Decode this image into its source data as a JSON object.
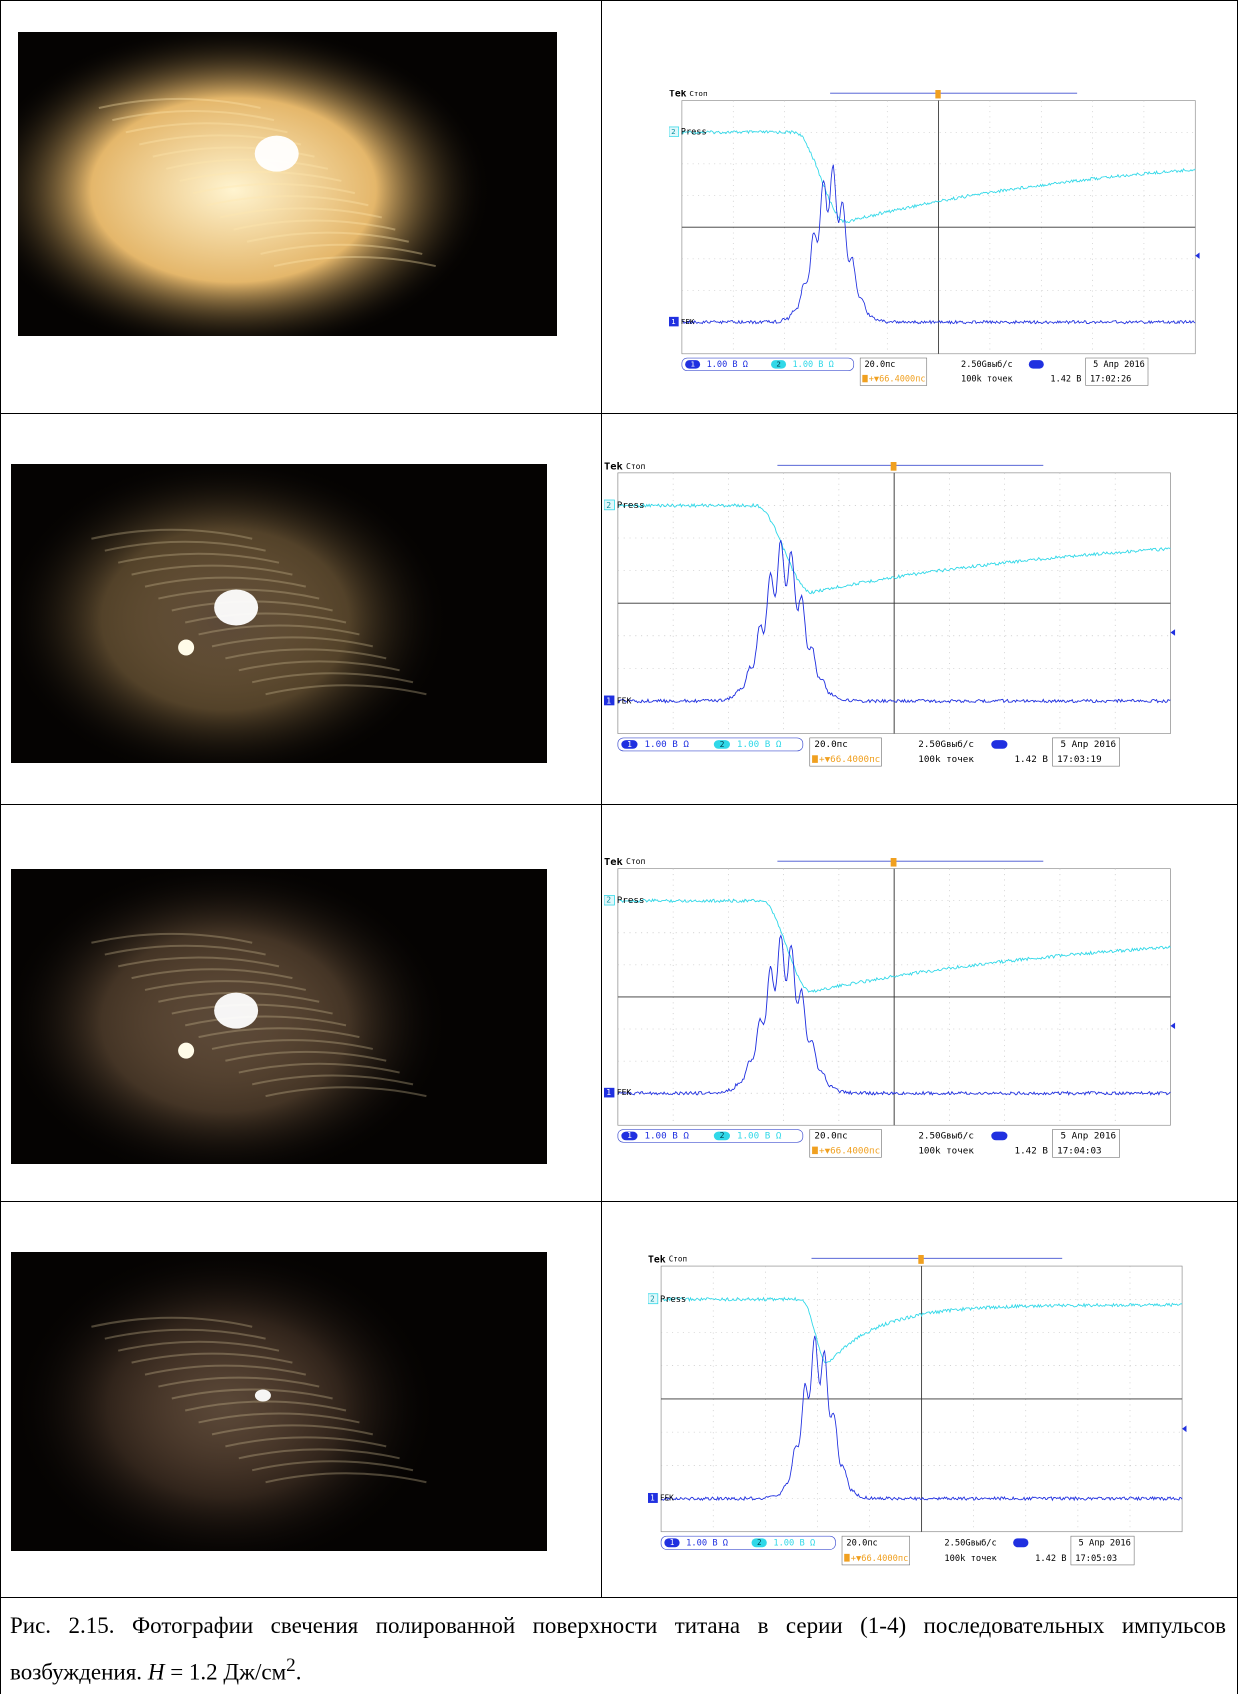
{
  "table": {
    "rows": [
      {
        "scope": {
          "brand": "Tek",
          "state": "Стоп",
          "ch2_label": "Press",
          "ch1_label": "FEK",
          "ch1_num": "1",
          "ch2_num": "2",
          "ch1_scale": "1.00 В Ω",
          "ch2_scale": "1.00 В Ω",
          "timebase": "20.0пс",
          "delay": "+▼66.4000пс",
          "sample_rate": "2.50Gвыб/с",
          "record": "100k точек",
          "trigger_level": "1.42 В",
          "date": "5 Апр 2016",
          "time": "17:02:26"
        }
      },
      {
        "scope": {
          "brand": "Tek",
          "state": "Стоп",
          "ch2_label": "Press",
          "ch1_label": "FEK",
          "ch1_num": "1",
          "ch2_num": "2",
          "ch1_scale": "1.00 В Ω",
          "ch2_scale": "1.00 В Ω",
          "timebase": "20.0пс",
          "delay": "+▼66.4000пс",
          "sample_rate": "2.50Gвыб/с",
          "record": "100k точек",
          "trigger_level": "1.42 В",
          "date": "5 Апр 2016",
          "time": "17:03:19"
        }
      },
      {
        "scope": {
          "brand": "Tek",
          "state": "Стоп",
          "ch2_label": "Press",
          "ch1_label": "FEK",
          "ch1_num": "1",
          "ch2_num": "2",
          "ch1_scale": "1.00 В Ω",
          "ch2_scale": "1.00 В Ω",
          "timebase": "20.0пс",
          "delay": "+▼66.4000пс",
          "sample_rate": "2.50Gвыб/с",
          "record": "100k точек",
          "trigger_level": "1.42 В",
          "date": "5 Апр 2016",
          "time": "17:04:03"
        }
      },
      {
        "scope": {
          "brand": "Tek",
          "state": "Стоп",
          "ch2_label": "Press",
          "ch1_label": "FEK",
          "ch1_num": "1",
          "ch2_num": "2",
          "ch1_scale": "1.00 В Ω",
          "ch2_scale": "1.00 В Ω",
          "timebase": "20.0пс",
          "delay": "+▼66.4000пс",
          "sample_rate": "2.50Gвыб/с",
          "record": "100k точек",
          "trigger_level": "1.42 В",
          "date": "5 Апр 2016",
          "time": "17:05:03"
        }
      }
    ]
  },
  "caption": {
    "figure": "Рис. 2.15.",
    "text": "Фотографии свечения  полированной поверхности титана в серии (1-4) последовательных импульсов возбуждения.",
    "h_symbol": "H",
    "h_value": "= 1.2 Дж/см",
    "h_exp": "2",
    "end": "."
  }
}
